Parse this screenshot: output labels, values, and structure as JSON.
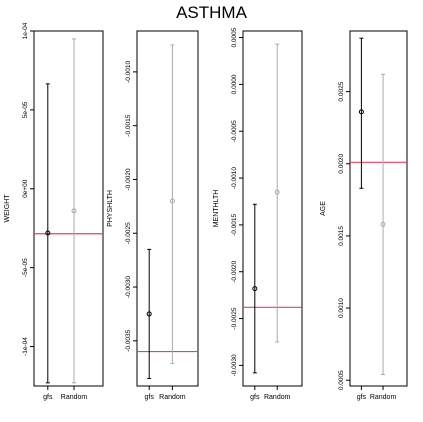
{
  "title": "ASTHMA",
  "colors": {
    "gfs": "#000000",
    "random": "#aaaaaa",
    "reference": "#e8435c",
    "frame": "#000000"
  },
  "chart_data": [
    {
      "type": "errorbar",
      "ylabel": "WEIGHT",
      "categories": [
        "gfs",
        "Random"
      ],
      "ylim": [
        -0.000125,
        0.0001
      ],
      "ticks": [
        -0.0001,
        -5e-05,
        0,
        5e-05,
        0.0001
      ],
      "tick_labels": [
        "-1e-04",
        "-5e-05",
        "0e+00",
        "5e-05",
        "1e-04"
      ],
      "reference_line": -2.85e-05,
      "series": [
        {
          "category": "gfs",
          "point": -2.8e-05,
          "lower": -0.000123,
          "upper": 6.65e-05
        },
        {
          "category": "Random",
          "point": -1.4e-05,
          "lower": -0.000123,
          "upper": 9.5e-05
        }
      ]
    },
    {
      "type": "errorbar",
      "ylabel": "PHYSHLTH",
      "categories": [
        "gfs",
        "Random"
      ],
      "ylim": [
        -0.00392,
        -0.00062
      ],
      "ticks": [
        -0.0035,
        -0.003,
        -0.0025,
        -0.002,
        -0.0015,
        -0.001
      ],
      "tick_labels": [
        "-0.0035",
        "-0.0030",
        "-0.0025",
        "-0.0020",
        "-0.0015",
        "-0.0010"
      ],
      "reference_line": -0.0036,
      "series": [
        {
          "category": "gfs",
          "point": -0.00325,
          "lower": -0.00385,
          "upper": -0.00265
        },
        {
          "category": "Random",
          "point": -0.0022,
          "lower": -0.00371,
          "upper": -0.00075
        }
      ]
    },
    {
      "type": "errorbar",
      "ylabel": "MENTHLTH",
      "categories": [
        "gfs",
        "Random"
      ],
      "ylim": [
        -0.00322,
        0.00057
      ],
      "ticks": [
        -0.003,
        -0.0025,
        -0.002,
        -0.0015,
        -0.001,
        -0.0005,
        0,
        0.0005
      ],
      "tick_labels": [
        "-0.0030",
        "-0.0025",
        "-0.0020",
        "-0.0015",
        "-0.0010",
        "-0.0005",
        "0.0000",
        "0.0005"
      ],
      "reference_line": -0.00238,
      "series": [
        {
          "category": "gfs",
          "point": -0.00218,
          "lower": -0.00308,
          "upper": -0.00128
        },
        {
          "category": "Random",
          "point": -0.00115,
          "lower": -0.00275,
          "upper": 0.00043
        }
      ]
    },
    {
      "type": "errorbar",
      "ylabel": "AGE",
      "categories": [
        "gfs",
        "Random"
      ],
      "ylim": [
        0.00046,
        0.00292
      ],
      "ticks": [
        0.0005,
        0.001,
        0.0015,
        0.002,
        0.0025
      ],
      "tick_labels": [
        "0.0005",
        "0.0010",
        "0.0015",
        "0.0020",
        "0.0025"
      ],
      "reference_line": 0.00201,
      "series": [
        {
          "category": "gfs",
          "point": 0.00236,
          "lower": 0.00183,
          "upper": 0.00287
        },
        {
          "category": "Random",
          "point": 0.00158,
          "lower": 0.00054,
          "upper": 0.00262
        }
      ]
    }
  ]
}
